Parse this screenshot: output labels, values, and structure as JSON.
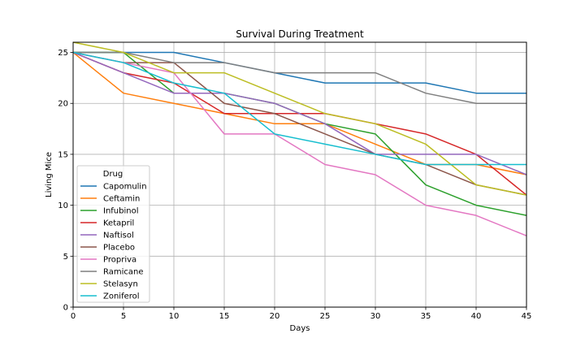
{
  "chart_data": {
    "type": "line",
    "title": "Survival During Treatment",
    "xlabel": "Days",
    "ylabel": "Living Mice",
    "xlim": [
      0,
      45
    ],
    "ylim": [
      0,
      26
    ],
    "xticks": [
      0,
      5,
      10,
      15,
      20,
      25,
      30,
      35,
      40,
      45
    ],
    "yticks": [
      0,
      5,
      10,
      15,
      20,
      25
    ],
    "grid": true,
    "legend": {
      "title": "Drug",
      "placement": "lower-left"
    },
    "x": [
      0,
      5,
      10,
      15,
      20,
      25,
      30,
      35,
      40,
      45
    ],
    "series": [
      {
        "name": "Capomulin",
        "color": "#1f77b4",
        "values": [
          25,
          25,
          25,
          24,
          23,
          22,
          22,
          22,
          21,
          21
        ]
      },
      {
        "name": "Ceftamin",
        "color": "#ff7f0e",
        "values": [
          25,
          21,
          20,
          19,
          18,
          18,
          16,
          14,
          14,
          13
        ]
      },
      {
        "name": "Infubinol",
        "color": "#2ca02c",
        "values": [
          25,
          25,
          21,
          21,
          20,
          18,
          17,
          12,
          10,
          9
        ]
      },
      {
        "name": "Ketapril",
        "color": "#d62728",
        "values": [
          25,
          23,
          22,
          19,
          19,
          19,
          18,
          17,
          15,
          11
        ]
      },
      {
        "name": "Naftisol",
        "color": "#9467bd",
        "values": [
          25,
          23,
          21,
          21,
          20,
          18,
          15,
          15,
          15,
          13
        ]
      },
      {
        "name": "Placebo",
        "color": "#8c564b",
        "values": [
          25,
          24,
          24,
          20,
          19,
          17,
          15,
          14,
          12,
          11
        ]
      },
      {
        "name": "Propriva",
        "color": "#e377c2",
        "values": [
          25,
          24,
          23,
          17,
          17,
          14,
          13,
          10,
          9,
          7
        ]
      },
      {
        "name": "Ramicane",
        "color": "#7f7f7f",
        "values": [
          25,
          25,
          24,
          24,
          23,
          23,
          23,
          21,
          20,
          20
        ]
      },
      {
        "name": "Stelasyn",
        "color": "#bcbd22",
        "values": [
          26,
          25,
          23,
          23,
          21,
          19,
          18,
          16,
          12,
          11
        ]
      },
      {
        "name": "Zoniferol",
        "color": "#17becf",
        "values": [
          25,
          24,
          22,
          21,
          17,
          16,
          15,
          14,
          14,
          14
        ]
      }
    ]
  }
}
